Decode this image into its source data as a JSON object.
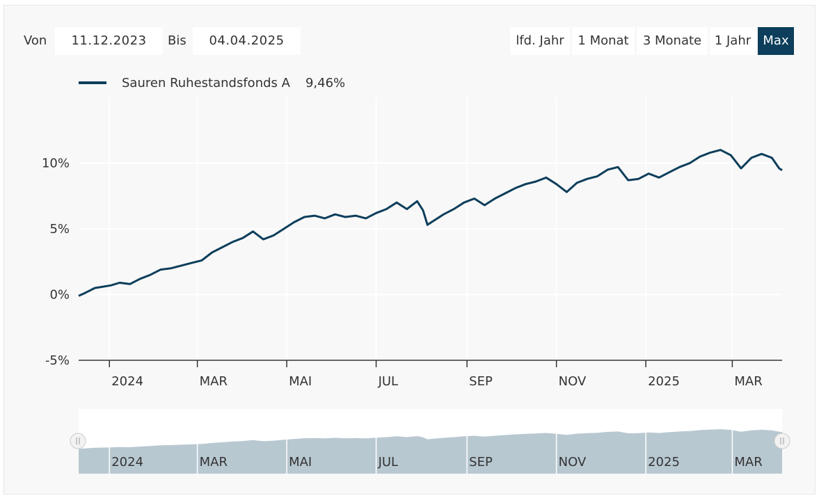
{
  "controls": {
    "from_label": "Von",
    "from_value": "11.12.2023",
    "to_label": "Bis",
    "to_value": "04.04.2025",
    "ranges": [
      "lfd. Jahr",
      "1 Monat",
      "3 Monate",
      "1 Jahr",
      "Max"
    ],
    "active_range": "Max"
  },
  "legend": {
    "name": "Sauren Ruhestandsfonds A",
    "value": "9,46%"
  },
  "colors": {
    "series": "#0d3e5b",
    "navigator_fill": "#b8c8d1",
    "active_button": "#0d3e5b"
  },
  "chart_data": {
    "type": "line",
    "x_tick_labels": [
      "2024",
      "MAR",
      "MAI",
      "JUL",
      "SEP",
      "NOV",
      "2025",
      "MAR"
    ],
    "x_tick_dates": [
      "2024-01-01",
      "2024-03-01",
      "2024-05-01",
      "2024-07-01",
      "2024-09-01",
      "2024-11-01",
      "2025-01-01",
      "2025-03-01"
    ],
    "y_tick_labels": [
      "-5%",
      "0%",
      "5%",
      "10%"
    ],
    "y_ticks": [
      -5,
      0,
      5,
      10
    ],
    "ylim": [
      -5,
      15
    ],
    "xlim": [
      "2023-12-11",
      "2025-04-04"
    ],
    "grid": true,
    "legend_position": "top-left",
    "series": [
      {
        "name": "Sauren Ruhestandsfonds A",
        "x": [
          "2023-12-11",
          "2023-12-15",
          "2023-12-22",
          "2024-01-02",
          "2024-01-08",
          "2024-01-15",
          "2024-01-22",
          "2024-01-29",
          "2024-02-05",
          "2024-02-12",
          "2024-02-19",
          "2024-02-26",
          "2024-03-04",
          "2024-03-11",
          "2024-03-18",
          "2024-03-25",
          "2024-04-01",
          "2024-04-08",
          "2024-04-15",
          "2024-04-22",
          "2024-04-29",
          "2024-05-06",
          "2024-05-13",
          "2024-05-20",
          "2024-05-27",
          "2024-06-03",
          "2024-06-10",
          "2024-06-17",
          "2024-06-24",
          "2024-07-01",
          "2024-07-08",
          "2024-07-15",
          "2024-07-22",
          "2024-07-29",
          "2024-08-02",
          "2024-08-05",
          "2024-08-09",
          "2024-08-16",
          "2024-08-23",
          "2024-08-30",
          "2024-09-06",
          "2024-09-13",
          "2024-09-20",
          "2024-09-27",
          "2024-10-04",
          "2024-10-11",
          "2024-10-18",
          "2024-10-25",
          "2024-11-01",
          "2024-11-08",
          "2024-11-15",
          "2024-11-22",
          "2024-11-29",
          "2024-12-06",
          "2024-12-13",
          "2024-12-20",
          "2024-12-27",
          "2025-01-03",
          "2025-01-10",
          "2025-01-17",
          "2025-01-24",
          "2025-01-31",
          "2025-02-07",
          "2025-02-14",
          "2025-02-21",
          "2025-02-28",
          "2025-03-07",
          "2025-03-14",
          "2025-03-21",
          "2025-03-28",
          "2025-04-02",
          "2025-04-04"
        ],
        "y": [
          -0.1,
          0.1,
          0.5,
          0.7,
          0.9,
          0.8,
          1.2,
          1.5,
          1.9,
          2.0,
          2.2,
          2.4,
          2.6,
          3.2,
          3.6,
          4.0,
          4.3,
          4.8,
          4.2,
          4.5,
          5.0,
          5.5,
          5.9,
          6.0,
          5.8,
          6.1,
          5.9,
          6.0,
          5.8,
          6.2,
          6.5,
          7.0,
          6.5,
          7.1,
          6.4,
          5.3,
          5.6,
          6.1,
          6.5,
          7.0,
          7.3,
          6.8,
          7.3,
          7.7,
          8.1,
          8.4,
          8.6,
          8.9,
          8.4,
          7.8,
          8.5,
          8.8,
          9.0,
          9.5,
          9.7,
          8.7,
          8.8,
          9.2,
          8.9,
          9.3,
          9.7,
          10.0,
          10.5,
          10.8,
          11.0,
          10.6,
          9.6,
          10.4,
          10.7,
          10.4,
          9.6,
          9.46
        ]
      }
    ],
    "navigator_tick_labels": [
      "2024",
      "MAR",
      "MAI",
      "JUL",
      "SEP",
      "NOV",
      "2025",
      "MAR"
    ]
  }
}
